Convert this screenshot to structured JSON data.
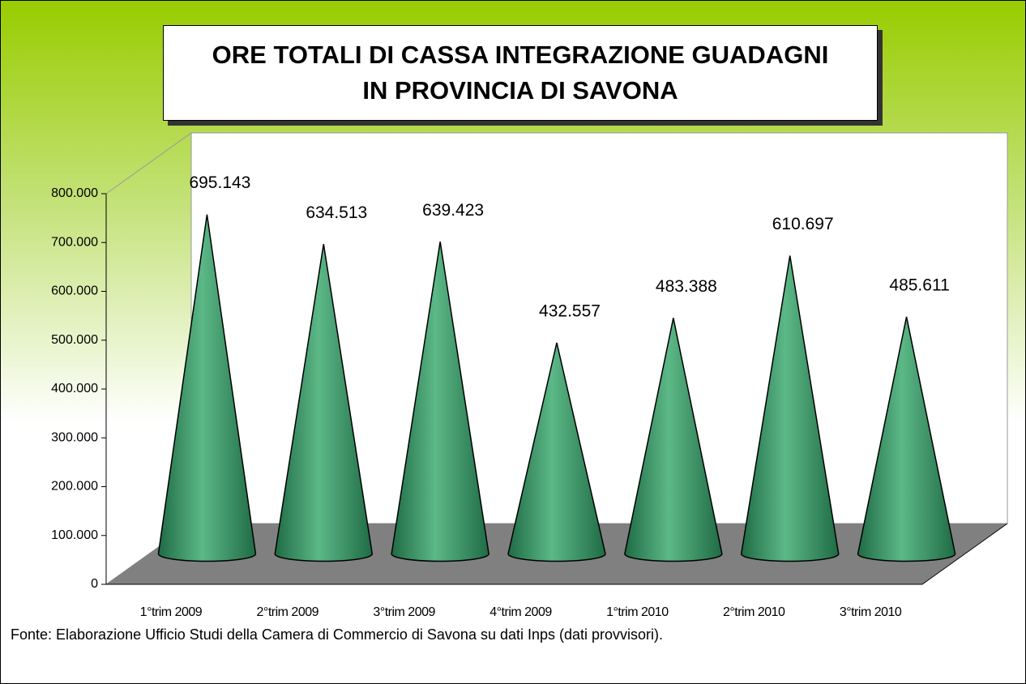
{
  "chart_data": {
    "type": "cone",
    "title": "ORE TOTALI DI CASSA INTEGRAZIONE GUADAGNI\nIN PROVINCIA DI SAVONA",
    "categories": [
      "1°trim 2009",
      "2°trim 2009",
      "3°trim 2009",
      "4°trim 2009",
      "1°trim 2010",
      "2°trim 2010",
      "3°trim 2010"
    ],
    "values": [
      695143,
      634513,
      639423,
      432557,
      483388,
      610697,
      485611
    ],
    "value_labels": [
      "695.143",
      "634.513",
      "639.423",
      "432.557",
      "483.388",
      "610.697",
      "485.611"
    ],
    "color": "#3d9a6a",
    "ylim": [
      0,
      800000
    ],
    "yticks": [
      0,
      {
        "value": 100000,
        "label": "100.000"
      },
      {
        "value": 200000,
        "label": "200.000"
      },
      {
        "value": 300000,
        "label": "300.000"
      },
      {
        "value": 400000,
        "label": "400.000"
      },
      {
        "value": 500000,
        "label": "500.000"
      },
      {
        "value": 600000,
        "label": "600.000"
      },
      {
        "value": 700000,
        "label": "700.000"
      },
      {
        "value": 800000,
        "label": "800.000"
      }
    ],
    "footnote": "Fonte: Elaborazione Ufficio Studi della Camera di Commercio di Savona su dati Inps (dati provvisori)."
  }
}
